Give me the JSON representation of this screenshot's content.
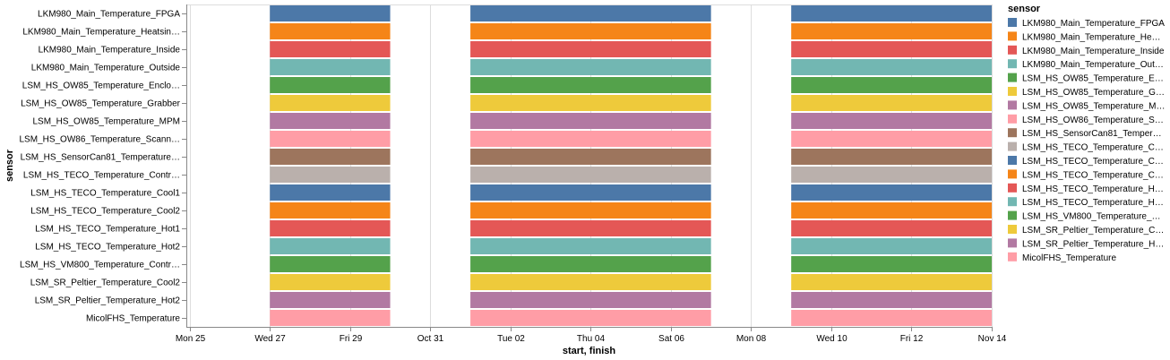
{
  "chart_data": {
    "type": "gantt",
    "xlabel": "start, finish",
    "ylabel": "sensor",
    "x_domain": [
      "2021-10-24T22:00",
      "2021-11-14T00:00"
    ],
    "x_ticks": [
      {
        "date": "2021-10-25",
        "label": "Mon 25"
      },
      {
        "date": "2021-10-27",
        "label": "Wed 27"
      },
      {
        "date": "2021-10-29",
        "label": "Fri 29"
      },
      {
        "date": "2021-10-31",
        "label": "Oct 31"
      },
      {
        "date": "2021-11-02",
        "label": "Tue 02"
      },
      {
        "date": "2021-11-04",
        "label": "Thu 04"
      },
      {
        "date": "2021-11-06",
        "label": "Sat 06"
      },
      {
        "date": "2021-11-08",
        "label": "Mon 08"
      },
      {
        "date": "2021-11-10",
        "label": "Wed 10"
      },
      {
        "date": "2021-11-12",
        "label": "Fri 12"
      },
      {
        "date": "2021-11-14",
        "label": "Nov 14"
      }
    ],
    "grid": true,
    "intervals": [
      {
        "start": "2021-10-27T00:00",
        "finish": "2021-10-30T00:00"
      },
      {
        "start": "2021-11-01T00:00",
        "finish": "2021-11-07T00:00"
      },
      {
        "start": "2021-11-09T00:00",
        "finish": "2021-11-14T00:00"
      }
    ],
    "sensors": [
      "LKM980_Main_Temperature_FPGA",
      "LKM980_Main_Temperature_Heatsin…",
      "LKM980_Main_Temperature_Inside",
      "LKM980_Main_Temperature_Outside",
      "LSM_HS_OW85_Temperature_Enclo…",
      "LSM_HS_OW85_Temperature_Grabber",
      "LSM_HS_OW85_Temperature_MPM",
      "LSM_HS_OW86_Temperature_Scann…",
      "LSM_HS_SensorCan81_Temperature…",
      "LSM_HS_TECO_Temperature_Contr…",
      "LSM_HS_TECO_Temperature_Cool1",
      "LSM_HS_TECO_Temperature_Cool2",
      "LSM_HS_TECO_Temperature_Hot1",
      "LSM_HS_TECO_Temperature_Hot2",
      "LSM_HS_VM800_Temperature_Contr…",
      "LSM_SR_Peltier_Temperature_Cool2",
      "LSM_SR_Peltier_Temperature_Hot2",
      "MicolFHS_Temperature"
    ],
    "colors": [
      "#4c78a8",
      "#f58518",
      "#e45756",
      "#72b7b2",
      "#54a24b",
      "#eeca3b",
      "#b279a2",
      "#ff9da6",
      "#9d755d",
      "#bab0ac",
      "#4c78a8",
      "#f58518",
      "#e45756",
      "#72b7b2",
      "#54a24b",
      "#eeca3b",
      "#b279a2",
      "#ff9da6"
    ],
    "legend": {
      "title": "sensor",
      "placement": "right",
      "entries": [
        "LKM980_Main_Temperature_FPGA",
        "LKM980_Main_Temperature_He…",
        "LKM980_Main_Temperature_Inside",
        "LKM980_Main_Temperature_Out…",
        "LSM_HS_OW85_Temperature_E…",
        "LSM_HS_OW85_Temperature_G…",
        "LSM_HS_OW85_Temperature_M…",
        "LSM_HS_OW86_Temperature_S…",
        "LSM_HS_SensorCan81_Temper…",
        "LSM_HS_TECO_Temperature_C…",
        "LSM_HS_TECO_Temperature_C…",
        "LSM_HS_TECO_Temperature_C…",
        "LSM_HS_TECO_Temperature_H…",
        "LSM_HS_TECO_Temperature_H…",
        "LSM_HS_VM800_Temperature_…",
        "LSM_SR_Peltier_Temperature_C…",
        "LSM_SR_Peltier_Temperature_H…",
        "MicolFHS_Temperature"
      ]
    }
  }
}
